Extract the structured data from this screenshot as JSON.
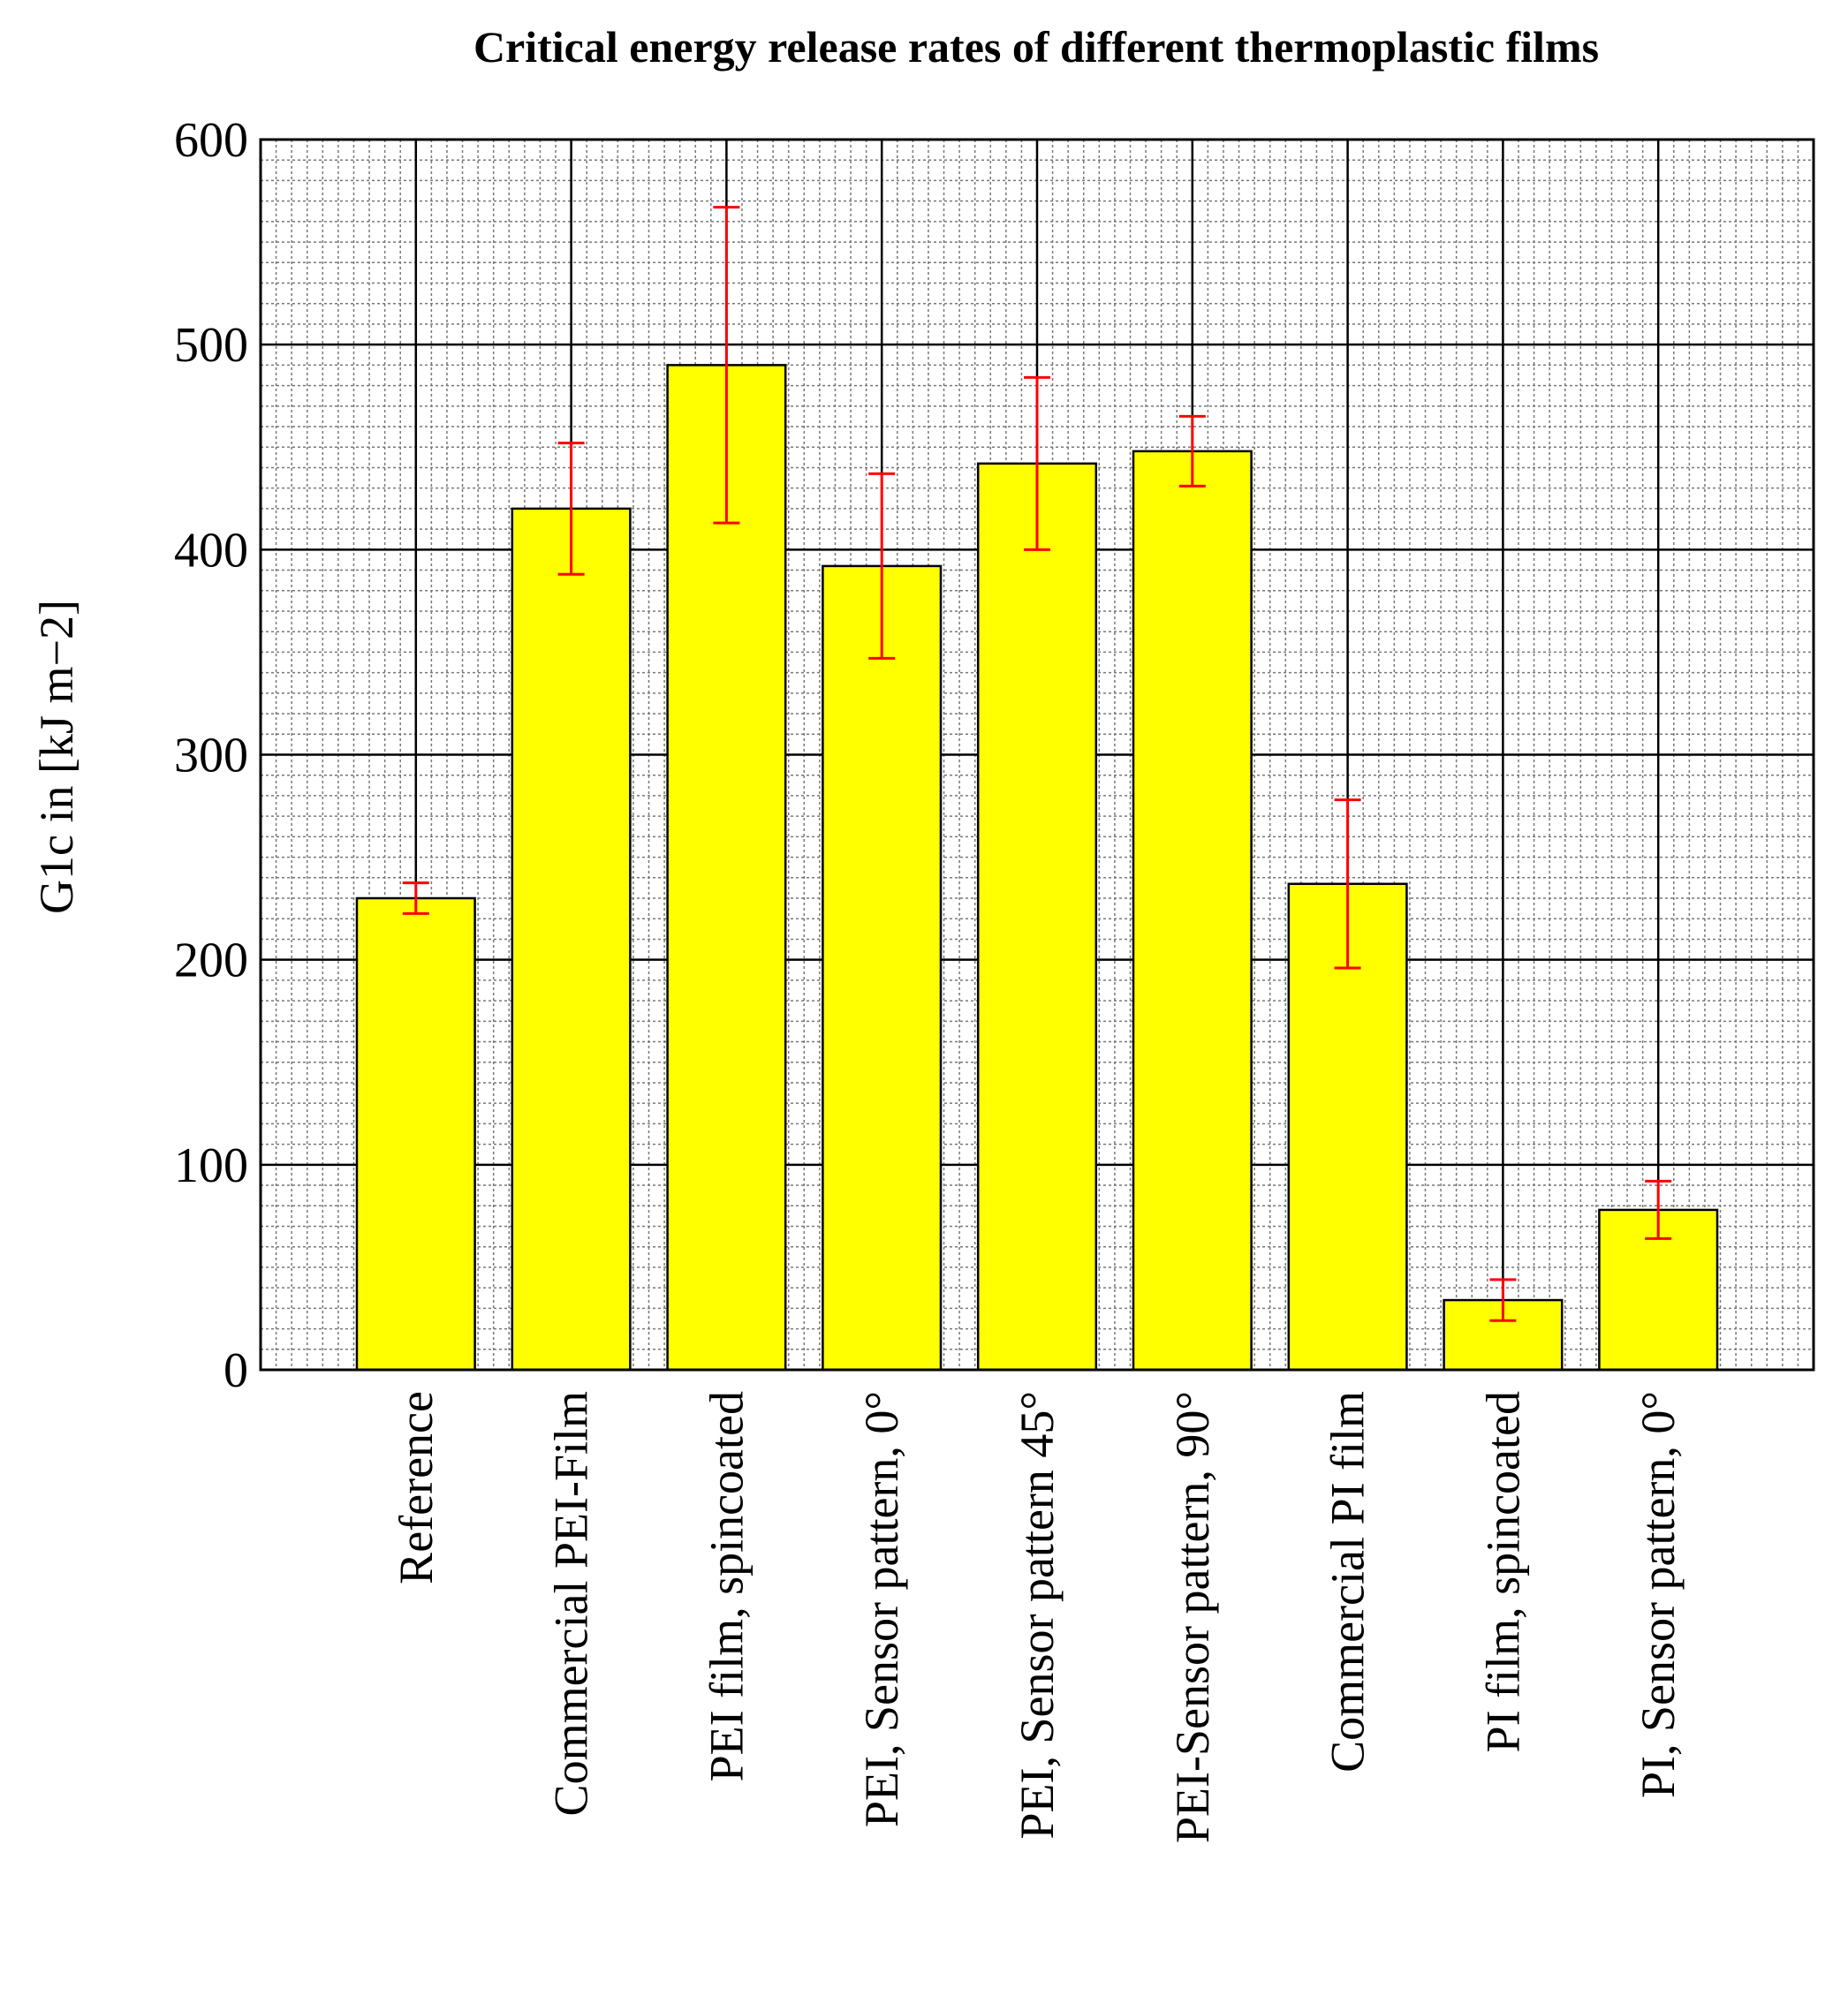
{
  "chart_data": {
    "type": "bar",
    "title": "Critical energy release rates of different thermoplastic films",
    "y_label": "G1c in [kJ m−2]",
    "categories": [
      "Reference",
      "Commercial PEI-Film",
      "PEI film, spincoated",
      "PEI, Sensor pattern, 0°",
      "PEI, Sensor pattern 45°",
      "PEI-Sensor pattern, 90°",
      "Commercial PI film",
      "PI film, spincoated",
      "PI, Sensor pattern, 0°"
    ],
    "values": [
      230,
      420,
      490,
      392,
      442,
      448,
      237,
      34,
      78
    ],
    "errors": [
      7.5,
      32,
      77,
      45,
      42,
      17,
      41,
      10,
      14
    ],
    "color": "#ffff00",
    "error_color": "#ff0000",
    "ylim": [
      0,
      600
    ],
    "yticks": [
      0,
      100,
      200,
      300,
      400,
      500,
      600
    ],
    "grid": true
  }
}
